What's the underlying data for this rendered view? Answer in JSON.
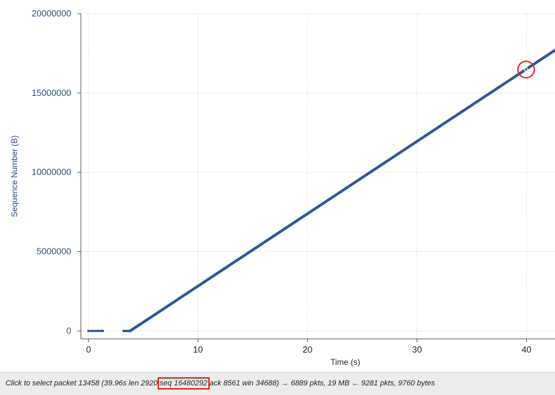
{
  "colors": {
    "series": "#2b5797",
    "axis_text": "#2b4d7a",
    "grid": "#c8c8c8",
    "highlight": "#e2241a"
  },
  "status_bar": {
    "prefix": "Click to select packet 13458 (39.96s len 2920 ",
    "seq": "seq 16480292",
    "suffix": " ack 8561 win 34688) → 6889 pkts, 19 MB ← 9281 pkts, 9760 bytes"
  },
  "chart_data": {
    "type": "scatter",
    "xlabel": "Time (s)",
    "ylabel": "Sequence Number (B)",
    "xlim": [
      -0.7,
      42.6
    ],
    "ylim": [
      -500000,
      20000000
    ],
    "xticks": [
      0,
      10,
      20,
      30,
      40
    ],
    "yticks": [
      0,
      5000000,
      10000000,
      15000000,
      20000000
    ],
    "grid": true,
    "series": [
      {
        "points": [
          [
            0.0,
            0
          ],
          [
            0.2,
            0
          ],
          [
            0.4,
            0
          ],
          [
            0.6,
            0
          ],
          [
            0.8,
            0
          ],
          [
            1.0,
            0
          ],
          [
            1.2,
            0
          ],
          [
            1.3,
            0
          ],
          [
            3.2,
            0
          ],
          [
            3.35,
            0
          ],
          [
            3.5,
            0
          ],
          [
            3.65,
            0
          ],
          [
            3.8,
            0
          ]
        ],
        "line": [
          [
            3.8,
            0
          ],
          [
            42.6,
            17700000
          ]
        ]
      }
    ],
    "selected_point": {
      "x": 39.96,
      "y": 16480292
    }
  }
}
